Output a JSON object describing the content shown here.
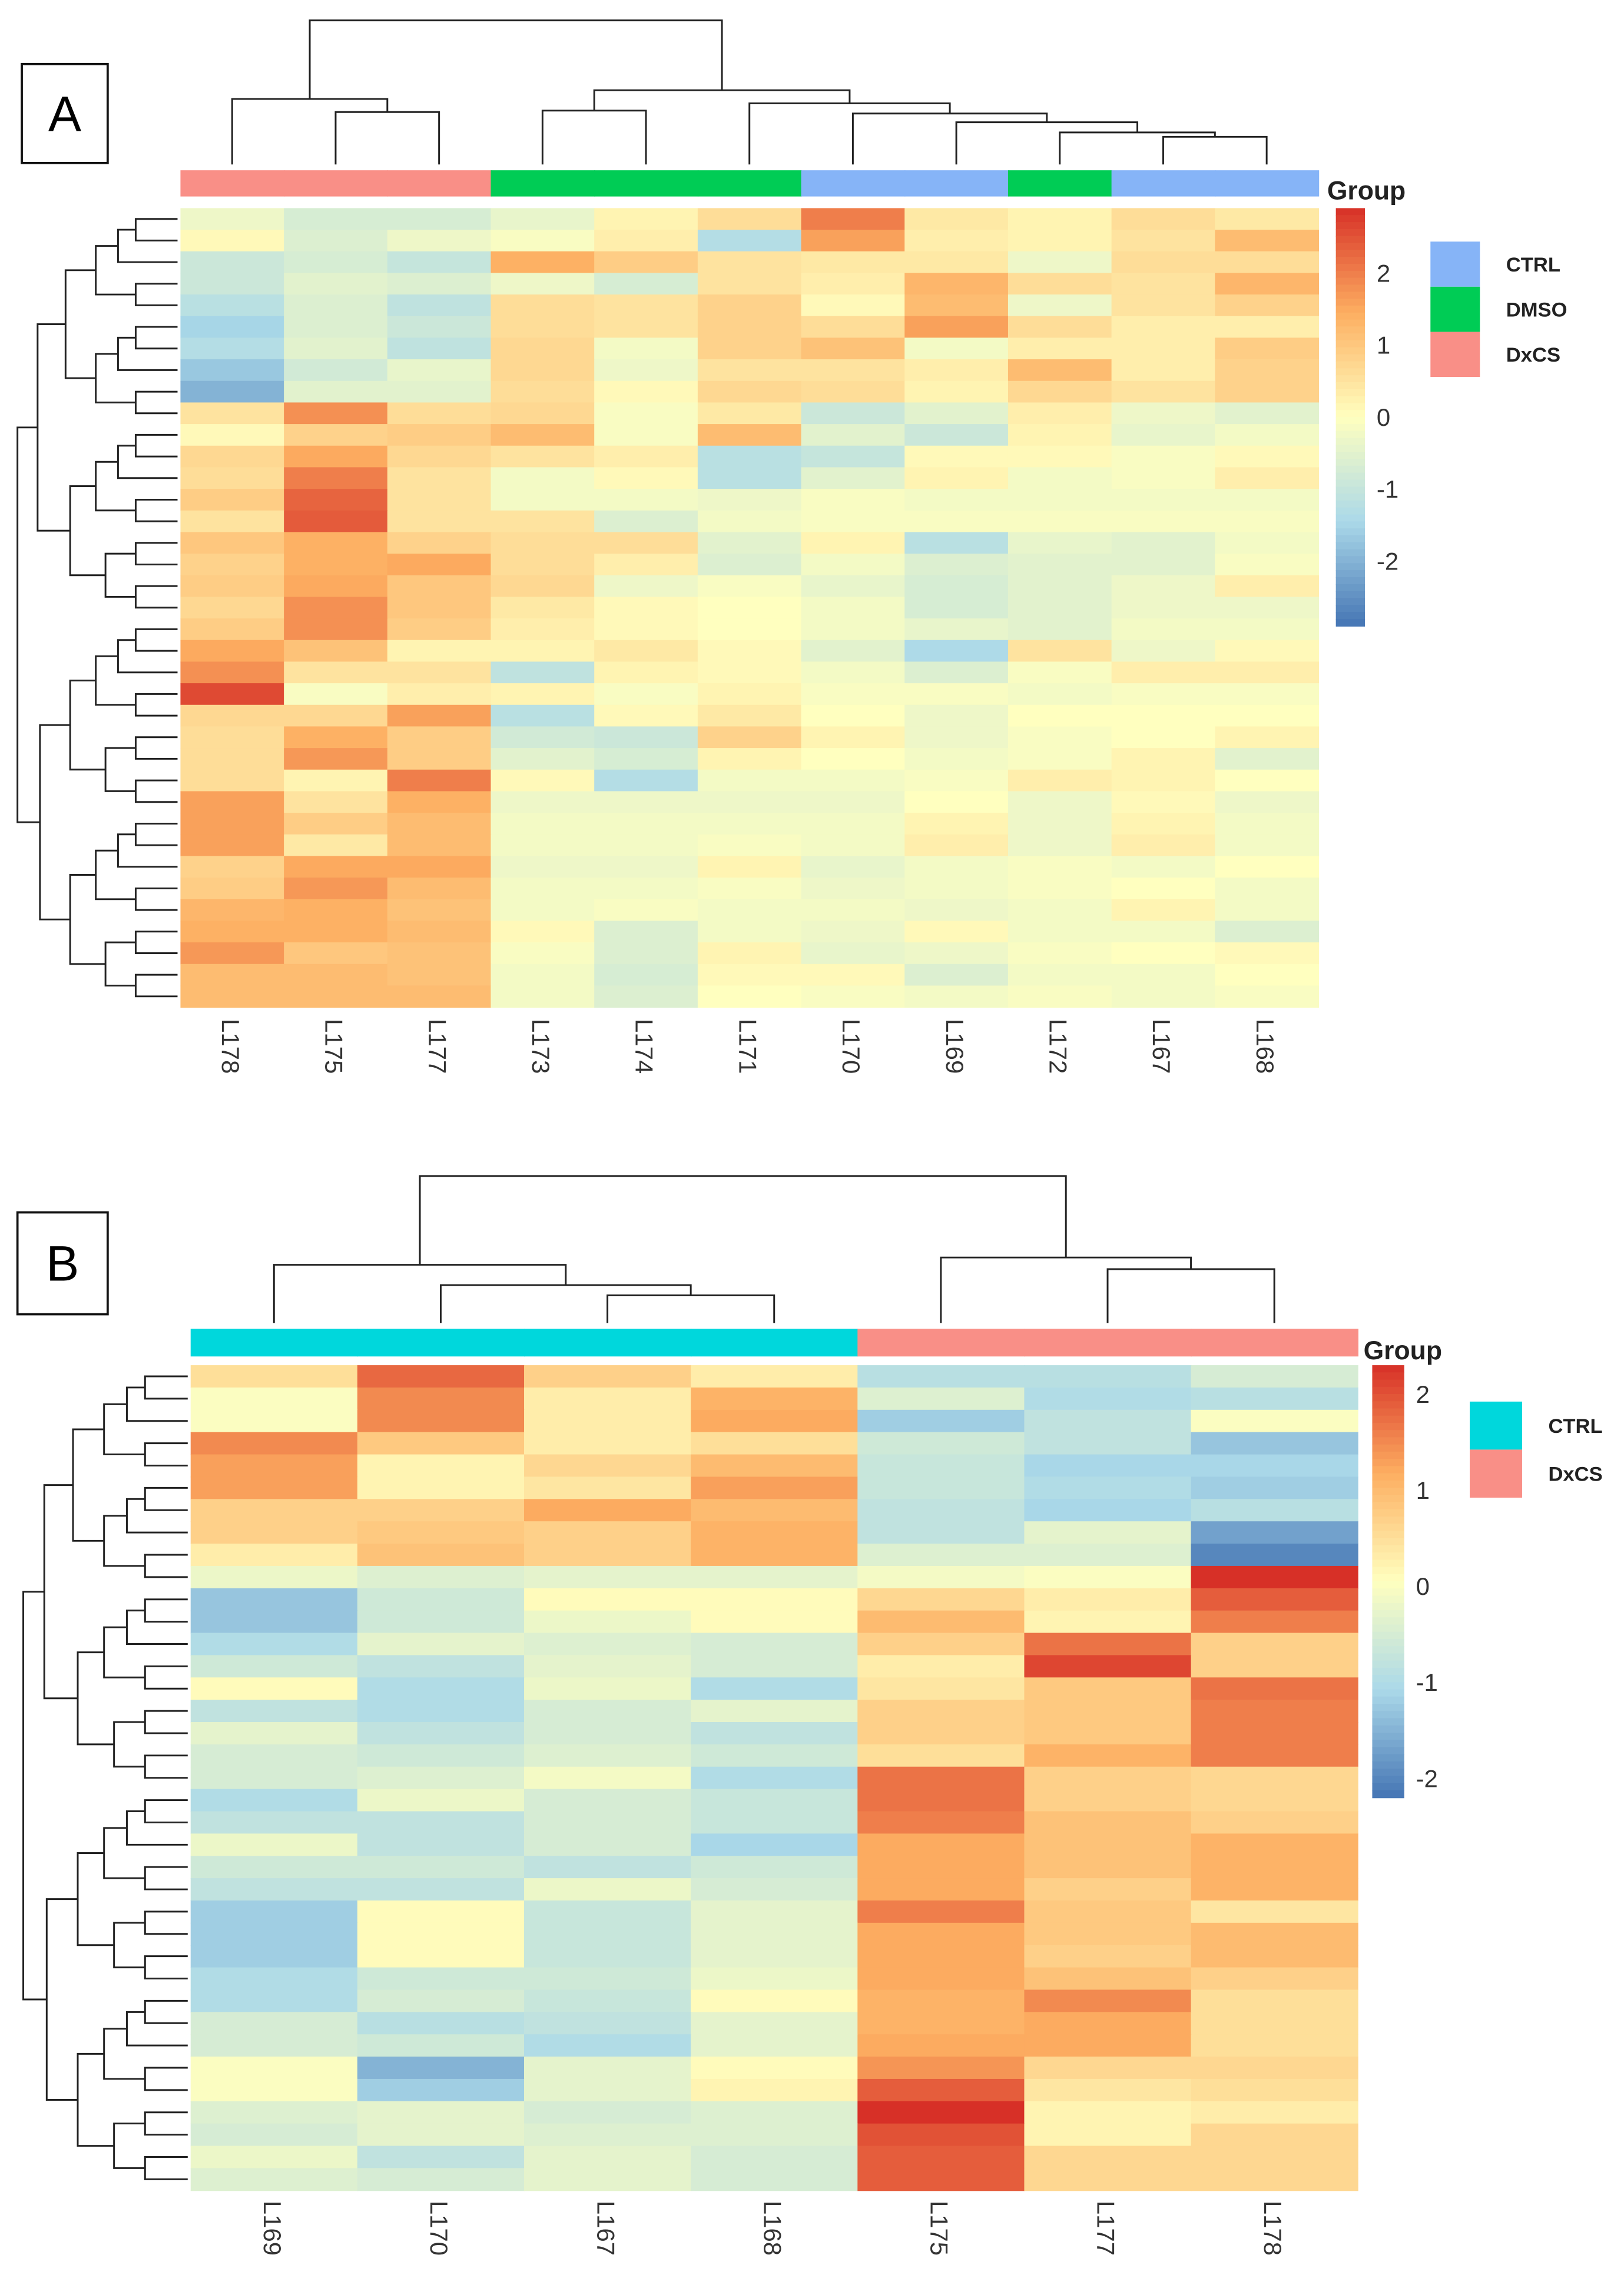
{
  "chart_data": [
    {
      "type": "heatmap",
      "panel_label": "A",
      "legend_title": "Group",
      "columns": [
        "L178",
        "L175",
        "L177",
        "L173",
        "L174",
        "L171",
        "L170",
        "L169",
        "L172",
        "L167",
        "L168"
      ],
      "column_groups": [
        "DxCS",
        "DxCS",
        "DxCS",
        "DMSO",
        "DMSO",
        "DMSO",
        "CTRL",
        "CTRL",
        "DMSO",
        "CTRL",
        "CTRL"
      ],
      "groups": [
        {
          "name": "CTRL",
          "color": "#86b4f7"
        },
        {
          "name": "DMSO",
          "color": "#00cc55"
        },
        {
          "name": "DxCS",
          "color": "#f98f87"
        }
      ],
      "colorbar_ticks": [
        "2",
        "1",
        "0",
        "-1",
        "-2"
      ],
      "colorbar_range": [
        -2.9,
        2.9
      ],
      "values": [
        [
          -0.3,
          -0.7,
          -0.7,
          -0.4,
          0.2,
          0.6,
          2.0,
          0.4,
          0.2,
          0.6,
          0.4
        ],
        [
          0.1,
          -0.6,
          -0.3,
          -0.1,
          0.3,
          -1.3,
          1.6,
          0.3,
          0.2,
          0.5,
          1.2
        ],
        [
          -0.9,
          -0.7,
          -1.0,
          1.4,
          0.9,
          0.5,
          0.4,
          0.4,
          -0.3,
          0.6,
          0.6
        ],
        [
          -0.9,
          -0.5,
          -0.6,
          -0.3,
          -0.7,
          0.5,
          0.3,
          1.3,
          0.6,
          0.5,
          1.3
        ],
        [
          -1.2,
          -0.6,
          -1.1,
          0.6,
          0.5,
          0.8,
          0.1,
          1.2,
          -0.3,
          0.5,
          0.8
        ],
        [
          -1.5,
          -0.6,
          -0.9,
          0.6,
          0.5,
          0.8,
          0.6,
          1.6,
          0.6,
          0.3,
          0.3
        ],
        [
          -1.3,
          -0.5,
          -1.1,
          0.7,
          -0.2,
          0.8,
          1.1,
          -0.2,
          0.3,
          0.3,
          0.9
        ],
        [
          -1.7,
          -0.8,
          -0.4,
          0.7,
          -0.3,
          0.5,
          0.5,
          0.3,
          1.2,
          0.3,
          0.8
        ],
        [
          -2.0,
          -0.5,
          -0.5,
          0.6,
          0.1,
          0.7,
          0.6,
          0.2,
          0.7,
          0.5,
          0.8
        ],
        [
          0.5,
          1.8,
          0.6,
          0.7,
          -0.1,
          0.4,
          -0.9,
          -0.5,
          0.3,
          -0.3,
          -0.5
        ],
        [
          0.1,
          0.8,
          0.9,
          1.2,
          -0.1,
          1.2,
          -0.5,
          -0.9,
          0.2,
          -0.4,
          -0.2
        ],
        [
          0.7,
          1.5,
          0.7,
          0.5,
          0.3,
          -1.2,
          -1.0,
          0.1,
          0.1,
          -0.1,
          0.1
        ],
        [
          0.6,
          2.0,
          0.5,
          -0.2,
          0.1,
          -1.2,
          -0.5,
          0.2,
          -0.2,
          -0.1,
          0.3
        ],
        [
          0.9,
          2.3,
          0.5,
          -0.2,
          -0.2,
          -0.3,
          -0.1,
          -0.2,
          -0.2,
          -0.2,
          -0.2
        ],
        [
          0.5,
          2.4,
          0.5,
          0.5,
          -0.6,
          -0.2,
          -0.1,
          -0.1,
          -0.1,
          -0.1,
          -0.1
        ],
        [
          1.0,
          1.4,
          0.8,
          0.6,
          0.6,
          -0.5,
          0.2,
          -1.2,
          -0.4,
          -0.5,
          -0.2
        ],
        [
          0.8,
          1.4,
          1.5,
          0.6,
          0.3,
          -0.6,
          -0.2,
          -0.6,
          -0.5,
          -0.5,
          -0.1
        ],
        [
          0.9,
          1.5,
          1.0,
          0.7,
          -0.3,
          -0.1,
          -0.4,
          -0.7,
          -0.5,
          -0.3,
          0.3
        ],
        [
          0.7,
          1.8,
          1.0,
          0.4,
          0.1,
          0.0,
          -0.2,
          -0.7,
          -0.5,
          -0.3,
          -0.3
        ],
        [
          0.9,
          1.8,
          0.9,
          0.3,
          0.1,
          0.0,
          -0.2,
          -0.4,
          -0.5,
          -0.2,
          -0.2
        ],
        [
          1.5,
          1.1,
          0.2,
          0.2,
          0.4,
          0.1,
          -0.5,
          -1.4,
          0.5,
          -0.3,
          0.1
        ],
        [
          1.8,
          0.5,
          0.5,
          -1.1,
          0.2,
          0.1,
          -0.2,
          -0.6,
          -0.1,
          0.3,
          0.3
        ],
        [
          2.6,
          -0.1,
          0.3,
          0.2,
          -0.1,
          0.2,
          -0.1,
          -0.1,
          -0.2,
          -0.1,
          -0.1
        ],
        [
          0.7,
          0.7,
          1.6,
          -1.2,
          0.1,
          0.4,
          0.0,
          -0.3,
          0.0,
          0.0,
          0.0
        ],
        [
          0.6,
          1.4,
          0.9,
          -0.8,
          -0.9,
          0.8,
          0.2,
          -0.3,
          -0.1,
          0.0,
          0.2
        ],
        [
          0.6,
          1.7,
          0.9,
          -0.5,
          -0.7,
          0.2,
          0.0,
          -0.2,
          -0.1,
          0.2,
          -0.5
        ],
        [
          0.6,
          0.2,
          2.0,
          0.1,
          -1.3,
          -0.2,
          -0.2,
          -0.1,
          0.3,
          0.2,
          0.0
        ],
        [
          1.6,
          0.5,
          1.4,
          -0.3,
          -0.3,
          -0.3,
          -0.3,
          0.0,
          -0.3,
          0.1,
          -0.3
        ],
        [
          1.6,
          0.9,
          1.2,
          -0.2,
          -0.2,
          -0.2,
          -0.2,
          0.2,
          -0.3,
          0.2,
          -0.2
        ],
        [
          1.6,
          0.4,
          1.2,
          -0.2,
          -0.2,
          -0.1,
          -0.2,
          0.3,
          -0.3,
          0.3,
          -0.2
        ],
        [
          0.8,
          1.5,
          1.5,
          -0.3,
          -0.3,
          0.2,
          -0.4,
          -0.2,
          -0.1,
          -0.2,
          0.0
        ],
        [
          0.9,
          1.7,
          1.2,
          -0.2,
          -0.2,
          -0.1,
          -0.3,
          -0.2,
          -0.1,
          0.0,
          -0.2
        ],
        [
          1.3,
          1.4,
          1.1,
          -0.2,
          -0.1,
          -0.2,
          -0.2,
          -0.3,
          -0.2,
          0.2,
          -0.2
        ],
        [
          1.4,
          1.4,
          1.2,
          0.1,
          -0.6,
          -0.2,
          -0.3,
          0.1,
          -0.2,
          -0.2,
          -0.6
        ],
        [
          1.7,
          1.0,
          1.1,
          -0.1,
          -0.6,
          0.2,
          -0.4,
          -0.3,
          -0.1,
          0.0,
          0.1
        ],
        [
          1.2,
          1.2,
          1.1,
          -0.2,
          -0.7,
          0.1,
          0.1,
          -0.6,
          -0.2,
          -0.2,
          0.0
        ],
        [
          1.2,
          1.2,
          1.2,
          -0.2,
          -0.6,
          0.0,
          -0.1,
          -0.2,
          -0.1,
          -0.2,
          -0.1
        ]
      ]
    },
    {
      "type": "heatmap",
      "panel_label": "B",
      "legend_title": "Group",
      "columns": [
        "L169",
        "L170",
        "L167",
        "L168",
        "L175",
        "L177",
        "L178"
      ],
      "column_groups": [
        "CTRL",
        "CTRL",
        "CTRL",
        "CTRL",
        "DxCS",
        "DxCS",
        "DxCS"
      ],
      "groups": [
        {
          "name": "CTRL",
          "color": "#00d7dc"
        },
        {
          "name": "DxCS",
          "color": "#f98f87"
        }
      ],
      "colorbar_ticks": [
        "2",
        "1",
        "0",
        "-1",
        "-2"
      ],
      "colorbar_range": [
        -2.2,
        2.3
      ],
      "values": [
        [
          0.5,
          1.8,
          0.7,
          0.3,
          -0.9,
          -0.9,
          -0.5
        ],
        [
          0.0,
          1.5,
          0.3,
          1.1,
          -0.4,
          -1.0,
          -0.9
        ],
        [
          0.0,
          1.5,
          0.3,
          1.2,
          -1.2,
          -0.8,
          0.0
        ],
        [
          1.5,
          0.8,
          0.3,
          0.5,
          -0.6,
          -0.8,
          -1.3
        ],
        [
          1.3,
          0.2,
          0.6,
          1.0,
          -0.7,
          -1.1,
          -1.1
        ],
        [
          1.3,
          0.2,
          0.4,
          1.3,
          -0.7,
          -1.0,
          -1.2
        ],
        [
          0.7,
          0.7,
          1.2,
          1.0,
          -0.8,
          -1.1,
          -0.9
        ],
        [
          0.7,
          0.8,
          0.7,
          1.1,
          -0.8,
          -0.3,
          -1.7
        ],
        [
          0.3,
          0.9,
          0.7,
          1.1,
          -0.4,
          -0.4,
          -2.0
        ],
        [
          -0.2,
          -0.4,
          -0.3,
          -0.3,
          -0.1,
          0.0,
          2.3
        ],
        [
          -1.3,
          -0.6,
          0.1,
          0.1,
          0.6,
          0.3,
          1.9
        ],
        [
          -1.3,
          -0.6,
          -0.2,
          0.1,
          1.0,
          0.2,
          1.6
        ],
        [
          -1.0,
          -0.3,
          -0.4,
          -0.5,
          0.7,
          1.7,
          0.7
        ],
        [
          -0.6,
          -0.8,
          -0.3,
          -0.5,
          0.3,
          2.1,
          0.7
        ],
        [
          0.1,
          -1.0,
          -0.2,
          -1.0,
          0.4,
          0.8,
          1.7
        ],
        [
          -0.8,
          -1.0,
          -0.5,
          -0.3,
          0.7,
          0.8,
          1.6
        ],
        [
          -0.3,
          -0.8,
          -0.5,
          -0.8,
          0.7,
          0.8,
          1.6
        ],
        [
          -0.5,
          -0.6,
          -0.4,
          -0.6,
          0.5,
          1.1,
          1.6
        ],
        [
          -0.5,
          -0.4,
          -0.1,
          -1.0,
          1.7,
          0.7,
          0.6
        ],
        [
          -1.0,
          -0.2,
          -0.5,
          -0.7,
          1.7,
          0.7,
          0.6
        ],
        [
          -0.8,
          -0.8,
          -0.5,
          -0.7,
          1.6,
          0.9,
          0.7
        ],
        [
          -0.2,
          -0.8,
          -0.5,
          -1.1,
          1.2,
          0.9,
          1.1
        ],
        [
          -0.6,
          -0.6,
          -0.8,
          -0.6,
          1.2,
          0.9,
          1.1
        ],
        [
          -0.8,
          -0.8,
          -0.2,
          -0.5,
          1.2,
          0.7,
          1.1
        ],
        [
          -1.2,
          0.1,
          -0.7,
          -0.3,
          1.6,
          0.8,
          0.4
        ],
        [
          -1.2,
          0.1,
          -0.7,
          -0.3,
          1.2,
          0.8,
          1.0
        ],
        [
          -1.2,
          0.1,
          -0.7,
          -0.3,
          1.2,
          0.7,
          1.0
        ],
        [
          -1.0,
          -0.6,
          -0.6,
          -0.2,
          1.2,
          0.9,
          0.7
        ],
        [
          -1.0,
          -0.5,
          -0.7,
          0.1,
          1.1,
          1.5,
          0.5
        ],
        [
          -0.5,
          -0.9,
          -0.8,
          -0.3,
          1.1,
          1.2,
          0.5
        ],
        [
          -0.5,
          -0.6,
          -1.0,
          -0.3,
          1.2,
          1.2,
          0.5
        ],
        [
          0.0,
          -1.5,
          -0.3,
          0.1,
          1.4,
          0.6,
          0.6
        ],
        [
          0.0,
          -1.2,
          -0.3,
          0.2,
          1.9,
          0.4,
          0.5
        ],
        [
          -0.4,
          -0.3,
          -0.5,
          -0.4,
          2.3,
          0.2,
          0.3
        ],
        [
          -0.5,
          -0.3,
          -0.4,
          -0.4,
          2.0,
          0.2,
          0.6
        ],
        [
          -0.2,
          -0.8,
          -0.3,
          -0.5,
          1.9,
          0.6,
          0.6
        ],
        [
          -0.4,
          -0.5,
          -0.3,
          -0.5,
          1.9,
          0.6,
          0.6
        ]
      ]
    }
  ]
}
